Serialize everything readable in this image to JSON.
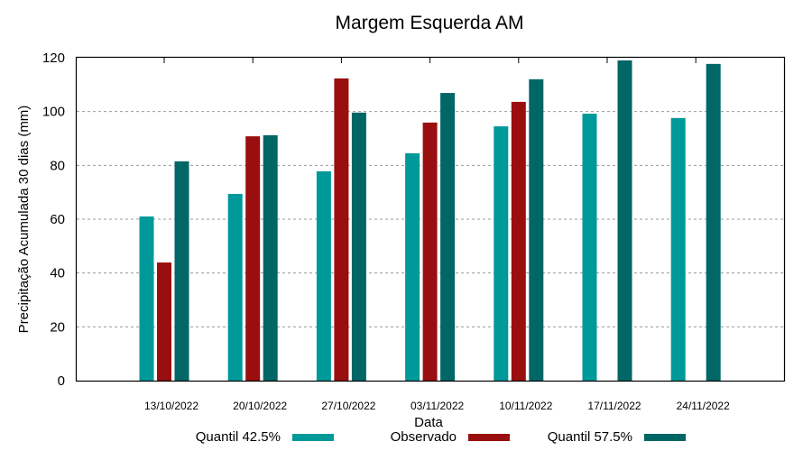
{
  "chart_data": {
    "type": "bar",
    "title": "Margem Esquerda AM",
    "xlabel": "Data",
    "ylabel": "Precipitação Acumulada 30 dias (mm)",
    "ylim": [
      0,
      120
    ],
    "yticks": [
      0,
      20,
      40,
      60,
      80,
      100,
      120
    ],
    "grid": true,
    "legend_position": "bottom",
    "categories": [
      "13/10/2022",
      "20/10/2022",
      "27/10/2022",
      "03/11/2022",
      "10/11/2022",
      "17/11/2022",
      "24/11/2022"
    ],
    "series": [
      {
        "name": "Quantil 42.5%",
        "color": "#009999",
        "values": [
          61.0,
          69.4,
          77.8,
          84.5,
          94.5,
          99.2,
          97.6
        ]
      },
      {
        "name": "Observado",
        "color": "#990f0f",
        "values": [
          43.9,
          90.8,
          112.3,
          95.9,
          103.6,
          null,
          null
        ]
      },
      {
        "name": "Quantil 57.5%",
        "color": "#006666",
        "values": [
          81.5,
          91.2,
          99.6,
          106.9,
          112.0,
          119.0,
          117.7
        ]
      }
    ]
  }
}
